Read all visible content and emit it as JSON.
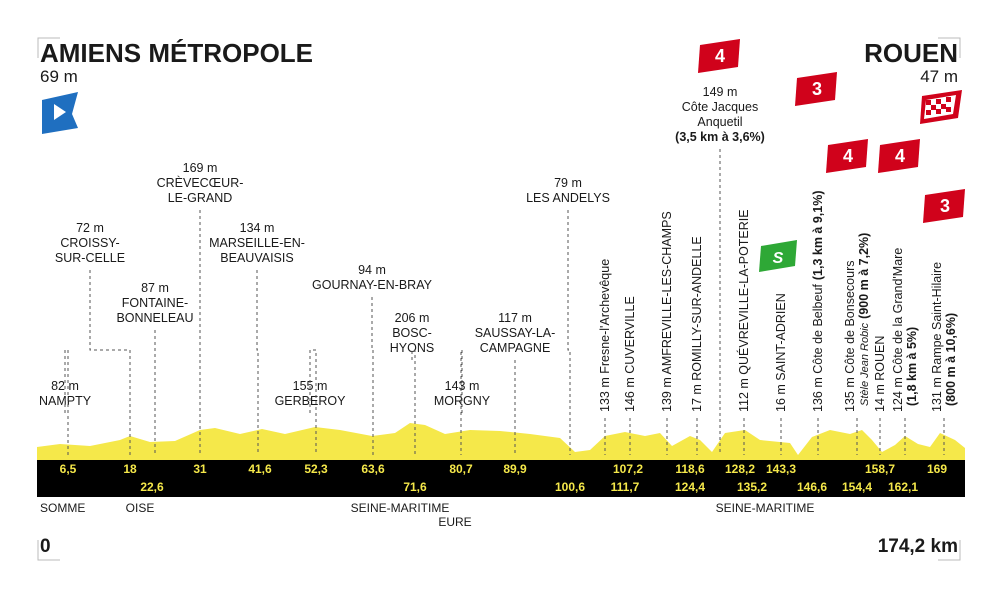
{
  "start": {
    "name": "AMIENS MÉTROPOLE",
    "altitude": "69 m",
    "km": "0"
  },
  "finish": {
    "name": "ROUEN",
    "altitude": "47 m",
    "km": "174,2 km"
  },
  "waypoints": [
    {
      "lines": [
        "82 m",
        "NAMPTY"
      ]
    },
    {
      "lines": [
        "72 m",
        "CROISSY-",
        "SUR-CELLE"
      ]
    },
    {
      "lines": [
        "87 m",
        "FONTAINE-",
        "BONNELEAU"
      ]
    },
    {
      "lines": [
        "169 m",
        "CRÈVECŒUR-",
        "LE-GRAND"
      ]
    },
    {
      "lines": [
        "134 m",
        "MARSEILLE-EN-",
        "BEAUVAISIS"
      ]
    },
    {
      "lines": [
        "155 m",
        "GERBEROY"
      ]
    },
    {
      "lines": [
        "94 m",
        "GOURNAY-EN-BRAY"
      ]
    },
    {
      "lines": [
        "206 m",
        "BOSC-",
        "HYONS"
      ]
    },
    {
      "lines": [
        "143 m",
        "MORGNY"
      ]
    },
    {
      "lines": [
        "117 m",
        "SAUSSAY-LA-",
        "CAMPAGNE"
      ]
    },
    {
      "lines": [
        "79 m",
        "LES ANDELYS"
      ]
    },
    {
      "lines": [
        "149 m",
        "Côte Jacques",
        "Anquetil",
        "(3,5 km à 3,6%)"
      ]
    }
  ],
  "vertical_waypoints": [
    {
      "text": "133 m Fresne-l'Archevêque"
    },
    {
      "text": "146 m CUVERVILLE"
    },
    {
      "text": "139 m AMFREVILLE-LES-CHAMPS"
    },
    {
      "text": "17 m ROMILLY-SUR-ANDELLE"
    },
    {
      "text": "112 m QUÉVREVILLE-LA-POTERIE"
    },
    {
      "text": "16 m SAINT-ADRIEN"
    },
    {
      "text": "136 m Côte de Belbeuf",
      "detail": "(1,3 km à 9,1%)"
    },
    {
      "text": "135 m Côte de Bonsecours",
      "note": "Stèle Jean Robic",
      "detail": "(900 m à 7,2%)"
    },
    {
      "text": "14 m ROUEN"
    },
    {
      "text": "124 m Côte de la Grand'Mare",
      "detail": "(1,8 km à 5%)"
    },
    {
      "text": "131 m Rampe Saint-Hilaire",
      "detail": "(800 m à 10,6%)"
    }
  ],
  "km_markers": [
    "6,5",
    "18",
    "22,6",
    "31",
    "41,6",
    "52,3",
    "63,6",
    "71,6",
    "80,7",
    "89,9",
    "100,6",
    "107,2",
    "111,7",
    "118,6",
    "124,4",
    "128,2",
    "135,2",
    "143,3",
    "146,6",
    "154,4",
    "158,7",
    "162,1",
    "169"
  ],
  "regions": [
    "SOMME",
    "OISE",
    "SEINE-MARITIME",
    "EURE",
    "SEINE-MARITIME"
  ],
  "climb_categories": [
    "4",
    "3",
    "4",
    "4",
    "3"
  ],
  "sprint": "S"
}
